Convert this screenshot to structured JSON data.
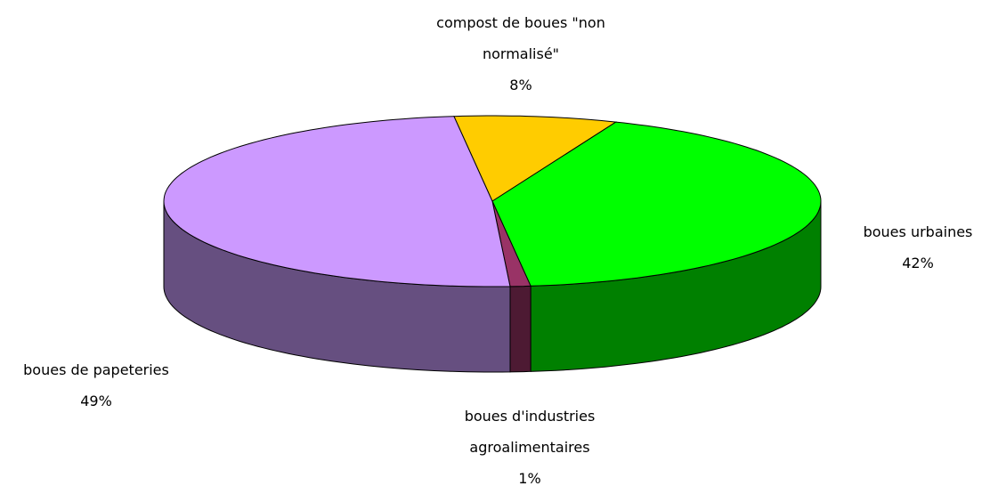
{
  "chart_data": {
    "type": "pie",
    "categories": [
      "compost de boues \"non normalisé\"",
      "boues urbaines",
      "boues d'industries agroalimentaires",
      "boues de papeteries"
    ],
    "values": [
      8,
      42,
      1,
      49
    ],
    "value_labels": [
      "8%",
      "42%",
      "1%",
      "49%"
    ],
    "colors": [
      "#ffcc00",
      "#00ff00",
      "#993366",
      "#cc99ff"
    ],
    "side_colors": [
      "#806600",
      "#008000",
      "#4d1a33",
      "#664f80"
    ]
  }
}
